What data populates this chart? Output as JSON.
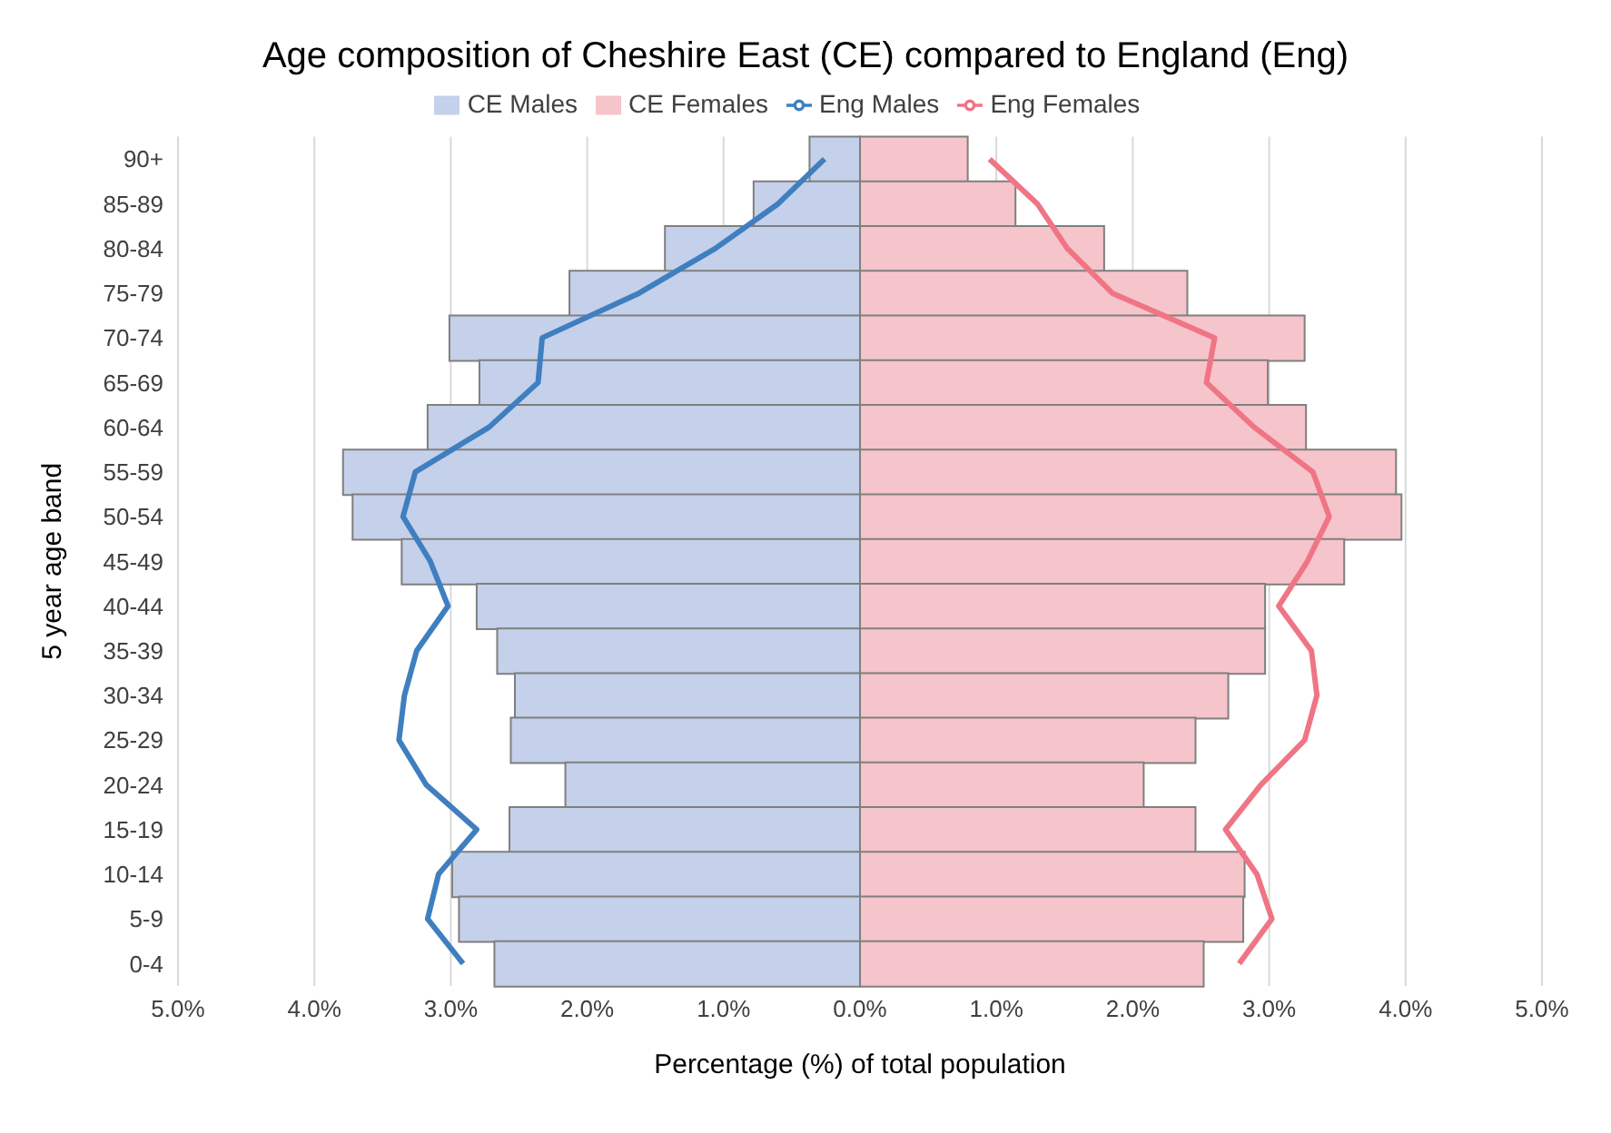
{
  "chart_data": {
    "type": "bar",
    "orientation": "horizontal",
    "stacked": true,
    "title": "Age composition of Cheshire East (CE) compared to England (Eng)",
    "xlabel": "Percentage (%) of total population",
    "ylabel": "5 year age band",
    "categories": [
      "90+",
      "85-89",
      "80-84",
      "75-79",
      "70-74",
      "65-69",
      "60-64",
      "55-59",
      "50-54",
      "45-49",
      "40-44",
      "35-39",
      "30-34",
      "25-29",
      "20-24",
      "15-19",
      "10-14",
      "5-9",
      "0-4"
    ],
    "series": [
      {
        "name": "CE Males",
        "color": "#c5d0ea",
        "values": [
          -0.37,
          -0.78,
          -1.43,
          -2.13,
          -3.01,
          -2.79,
          -3.17,
          -3.79,
          -3.72,
          -3.36,
          -2.81,
          -2.66,
          -2.53,
          -2.56,
          -2.16,
          -2.57,
          -2.99,
          -2.94,
          -2.68
        ]
      },
      {
        "name": "CE Females",
        "color": "#f6c4cb",
        "values": [
          0.79,
          1.14,
          1.79,
          2.4,
          3.26,
          2.99,
          3.27,
          3.93,
          3.97,
          3.55,
          2.97,
          2.97,
          2.7,
          2.46,
          2.08,
          2.46,
          2.82,
          2.81,
          2.52
        ]
      },
      {
        "name": "Eng Males",
        "type": "line",
        "color": "#3f7fbf",
        "values": [
          -0.26,
          -0.6,
          -1.06,
          -1.62,
          -2.33,
          -2.36,
          -2.72,
          -3.26,
          -3.35,
          -3.15,
          -3.02,
          -3.25,
          -3.34,
          -3.38,
          -3.18,
          -2.81,
          -3.09,
          -3.17,
          -2.91
        ]
      },
      {
        "name": "Eng Females",
        "type": "line",
        "color": "#ef7585",
        "values": [
          0.95,
          1.3,
          1.52,
          1.85,
          2.6,
          2.54,
          2.89,
          3.32,
          3.44,
          3.28,
          3.07,
          3.31,
          3.35,
          3.26,
          2.94,
          2.68,
          2.91,
          3.02,
          2.78
        ]
      }
    ],
    "xlim": [
      -5,
      5
    ],
    "xticks": [
      {
        "value": -5,
        "label": "5.0%"
      },
      {
        "value": -4,
        "label": "4.0%"
      },
      {
        "value": -3,
        "label": "3.0%"
      },
      {
        "value": -2,
        "label": "2.0%"
      },
      {
        "value": -1,
        "label": "1.0%"
      },
      {
        "value": 0,
        "label": "0.0%"
      },
      {
        "value": 1,
        "label": "1.0%"
      },
      {
        "value": 2,
        "label": "2.0%"
      },
      {
        "value": 3,
        "label": "3.0%"
      },
      {
        "value": 4,
        "label": "4.0%"
      },
      {
        "value": 5,
        "label": "5.0%"
      }
    ],
    "grid": "x",
    "legend": "top",
    "marker": "none",
    "line_style": "solid"
  }
}
